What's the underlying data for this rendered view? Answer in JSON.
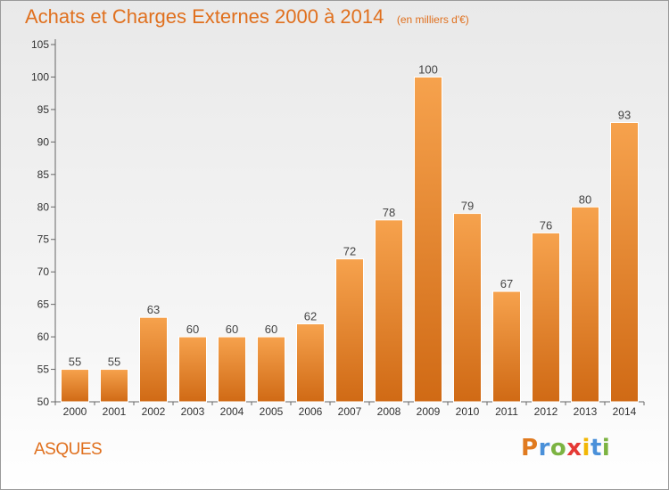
{
  "header": {
    "title": "Achats et Charges Externes 2000 à 2014",
    "subtitle": "(en milliers d'€)"
  },
  "commune": "ASQUES",
  "brand": {
    "letters": [
      "P",
      "r",
      "o",
      "x",
      "i",
      "t",
      "i"
    ],
    "colors": [
      "#e07a1f",
      "#4a90d9",
      "#7cb342",
      "#e53935",
      "#f2b705",
      "#4a90d9",
      "#7cb342"
    ]
  },
  "colors": {
    "accent": "#e0701e",
    "bar_light": "#f6a24d",
    "bar_dark": "#d06a15"
  },
  "chart_data": {
    "type": "bar",
    "title": "Achats et Charges Externes 2000 à 2014",
    "subtitle": "(en milliers d'€)",
    "xlabel": "",
    "ylabel": "",
    "categories": [
      "2000",
      "2001",
      "2002",
      "2003",
      "2004",
      "2005",
      "2006",
      "2007",
      "2008",
      "2009",
      "2010",
      "2011",
      "2012",
      "2013",
      "2014"
    ],
    "values": [
      55,
      55,
      63,
      60,
      60,
      60,
      62,
      72,
      78,
      100,
      79,
      67,
      76,
      80,
      93
    ],
    "data_labels": [
      "55",
      "55",
      "63",
      "60",
      "60",
      "60",
      "62",
      "72",
      "78",
      "100",
      "79",
      "67",
      "76",
      "80",
      "93"
    ],
    "ylim": [
      50,
      105
    ],
    "yticks": [
      50,
      55,
      60,
      65,
      70,
      75,
      80,
      85,
      90,
      95,
      100,
      105
    ],
    "grid": false,
    "legend": "none"
  }
}
